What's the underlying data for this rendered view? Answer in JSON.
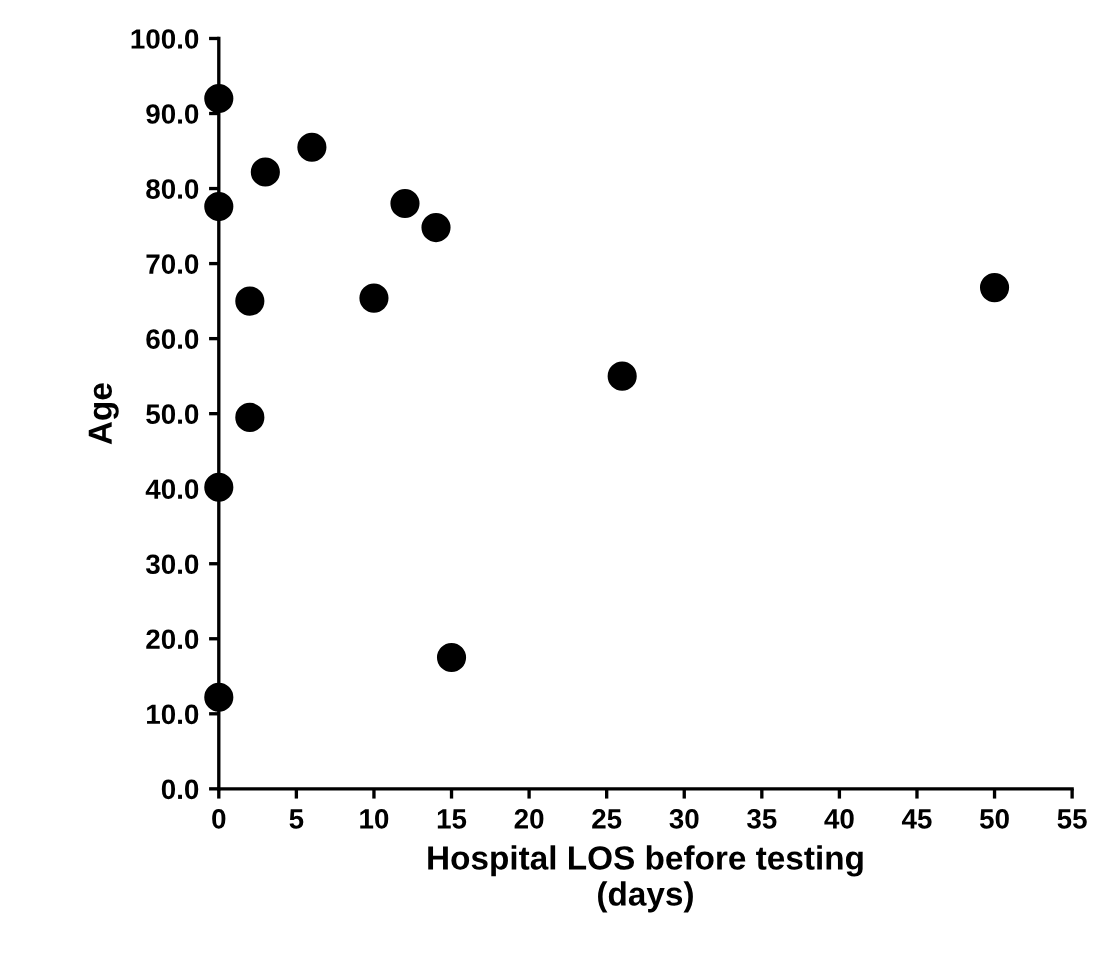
{
  "chart_data": {
    "type": "scatter",
    "xlabel": "Hospital LOS before testing\n(days)",
    "ylabel": "Age",
    "x": [
      0,
      0,
      0,
      0,
      2,
      2,
      3,
      6,
      10,
      12,
      14,
      15,
      26,
      50
    ],
    "values": [
      92.0,
      77.6,
      40.2,
      12.2,
      65.0,
      49.5,
      82.2,
      85.5,
      65.4,
      78.0,
      74.8,
      17.5,
      55.0,
      66.8
    ],
    "color": "#000000",
    "marker": "circle",
    "grid": false,
    "legend": false,
    "xlim": [
      0,
      55
    ],
    "xticks": [
      0,
      5,
      10,
      15,
      20,
      25,
      30,
      35,
      40,
      45,
      50,
      55
    ],
    "ylim": [
      0,
      100
    ],
    "yticks": [
      {
        "value": 0,
        "label": "0.0"
      },
      {
        "value": 10,
        "label": "10.0"
      },
      {
        "value": 20,
        "label": "20.0"
      },
      {
        "value": 30,
        "label": "30.0"
      },
      {
        "value": 40,
        "label": "40.0"
      },
      {
        "value": 50,
        "label": "50.0"
      },
      {
        "value": 60,
        "label": "60.0"
      },
      {
        "value": 70,
        "label": "70.0"
      },
      {
        "value": 80,
        "label": "80.0"
      },
      {
        "value": 90,
        "label": "90.0"
      },
      {
        "value": 100,
        "label": "100.0"
      }
    ]
  }
}
